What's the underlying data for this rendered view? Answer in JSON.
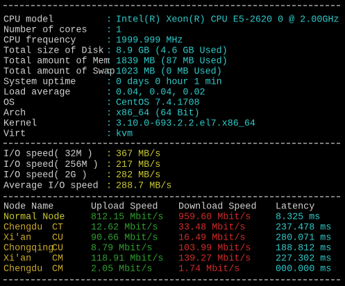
{
  "separator": ":",
  "system_info": [
    {
      "label": "CPU model",
      "value": "Intel(R) Xeon(R) CPU E5-2620 0 @ 2.00GHz"
    },
    {
      "label": "Number of cores",
      "value": "1"
    },
    {
      "label": "CPU frequency",
      "value": "1999.999 MHz"
    },
    {
      "label": "Total size of Disk",
      "value": "8.9 GB (4.6 GB Used)"
    },
    {
      "label": "Total amount of Mem",
      "value": "1839 MB (87 MB Used)"
    },
    {
      "label": "Total amount of Swap",
      "value": "1023 MB (0 MB Used)"
    },
    {
      "label": "System uptime",
      "value": "0 days 0 hour 1 min"
    },
    {
      "label": "Load average",
      "value": "0.04, 0.04, 0.02"
    },
    {
      "label": "OS",
      "value": "CentOS 7.4.1708"
    },
    {
      "label": "Arch",
      "value": "x86_64 (64 Bit)"
    },
    {
      "label": "Kernel",
      "value": "3.10.0-693.2.2.el7.x86_64"
    },
    {
      "label": "Virt",
      "value": "kvm"
    }
  ],
  "io": [
    {
      "label": "I/O speed( 32M )",
      "value": "367 MB/s"
    },
    {
      "label": "I/O speed( 256M )",
      "value": "217 MB/s"
    },
    {
      "label": "I/O speed( 2G )",
      "value": "282 MB/s"
    },
    {
      "label": "Average I/O speed",
      "value": "288.7 MB/s"
    }
  ],
  "speedtest": {
    "headers": [
      "Node Name",
      "Upload Speed",
      "Download Speed",
      "Latency"
    ],
    "rows": [
      {
        "node": "Normal Node",
        "upload": "812.15 Mbit/s",
        "download": "959.60 Mbit/s",
        "latency": "8.325 ms"
      },
      {
        "node": "Chengdu",
        "isp": "CT",
        "upload": "12.62 Mbit/s",
        "download": "33.48 Mbit/s",
        "latency": "237.478 ms"
      },
      {
        "node": "Xi'an",
        "isp": "CU",
        "upload": "90.66 Mbit/s",
        "download": "16.49 Mbit/s",
        "latency": "280.071 ms"
      },
      {
        "node": "Chongqing",
        "isp": "CU",
        "upload": "8.79 Mbit/s",
        "download": "103.99 Mbit/s",
        "latency": "188.812 ms"
      },
      {
        "node": "Xi'an",
        "isp": "CM",
        "upload": "118.91 Mbit/s",
        "download": "139.27 Mbit/s",
        "latency": "227.302 ms"
      },
      {
        "node": "Chengdu",
        "isp": "CM",
        "upload": "2.05 Mbit/s",
        "download": "1.74 Mbit/s",
        "latency": "000.000 ms"
      }
    ]
  }
}
